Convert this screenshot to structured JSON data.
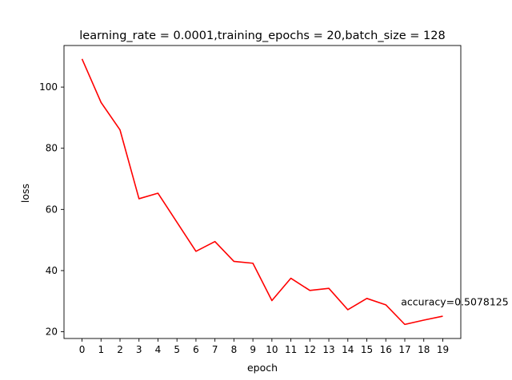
{
  "chart_data": {
    "type": "line",
    "title": "learning_rate = 0.0001,training_epochs = 20,batch_size = 128",
    "xlabel": "epoch",
    "ylabel": "loss",
    "x": [
      0,
      1,
      2,
      3,
      4,
      5,
      6,
      7,
      8,
      9,
      10,
      11,
      12,
      13,
      14,
      15,
      16,
      17,
      18,
      19
    ],
    "series": [
      {
        "color": "#ff0000",
        "values": [
          109.2,
          95.0,
          86.0,
          63.5,
          65.3,
          55.8,
          46.3,
          49.5,
          43.0,
          42.4,
          30.2,
          37.5,
          33.5,
          34.2,
          27.2,
          30.9,
          28.8,
          22.4,
          23.8,
          25.1
        ]
      }
    ],
    "xticks": [
      0,
      1,
      2,
      3,
      4,
      5,
      6,
      7,
      8,
      9,
      10,
      11,
      12,
      13,
      14,
      15,
      16,
      17,
      18,
      19
    ],
    "yticks": [
      20,
      40,
      60,
      80,
      100
    ],
    "xlim": [
      -0.95,
      19.95
    ],
    "ylim": [
      17.8,
      113.6
    ],
    "grid": false,
    "annotations": [
      {
        "text": "accuracy=0.5078125",
        "x": 16.8,
        "y": 28.6
      }
    ]
  }
}
